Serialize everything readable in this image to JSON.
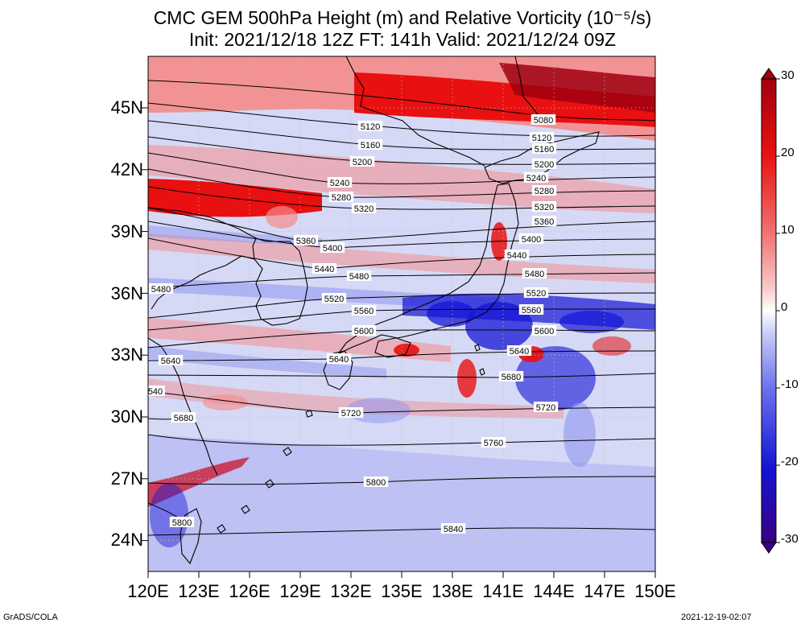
{
  "title": {
    "line1": "CMC GEM 500hPa Height (m) and Relative Vorticity (10⁻⁵/s)",
    "line2": "Init: 2021/12/18 12Z  FT: 141h  Valid: 2021/12/24 09Z"
  },
  "map": {
    "region": "East Asia / Japan",
    "lon_range": [
      120,
      150
    ],
    "lat_range": [
      22.5,
      47.5
    ],
    "lon_labels": [
      "120E",
      "123E",
      "126E",
      "129E",
      "132E",
      "135E",
      "138E",
      "141E",
      "144E",
      "147E",
      "150E"
    ],
    "lat_labels": [
      "45N",
      "42N",
      "39N",
      "36N",
      "33N",
      "30N",
      "27N",
      "24N"
    ],
    "contour_interval_m": 40,
    "contour_labels": [
      "5080",
      "5120",
      "5160",
      "5200",
      "5240",
      "5280",
      "5320",
      "5360",
      "5400",
      "5440",
      "5480",
      "5520",
      "5560",
      "5600",
      "5640",
      "5680",
      "5720",
      "5760",
      "5800",
      "5840",
      "540"
    ]
  },
  "colorbar": {
    "labels": [
      "30",
      "20",
      "10",
      "0",
      "-10",
      "-20",
      "-30"
    ],
    "range": [
      -30,
      30
    ],
    "colors": {
      "pos_max": "#a00010",
      "pos_high": "#e81010",
      "pos_mid": "#f58a8a",
      "zero": "#ffffff",
      "neg_mid": "#8e94f0",
      "neg_high": "#1414d6",
      "neg_max": "#3a0080"
    }
  },
  "footer": {
    "credit": "GrADS/COLA",
    "timestamp": "2021-12-19-02:07"
  }
}
